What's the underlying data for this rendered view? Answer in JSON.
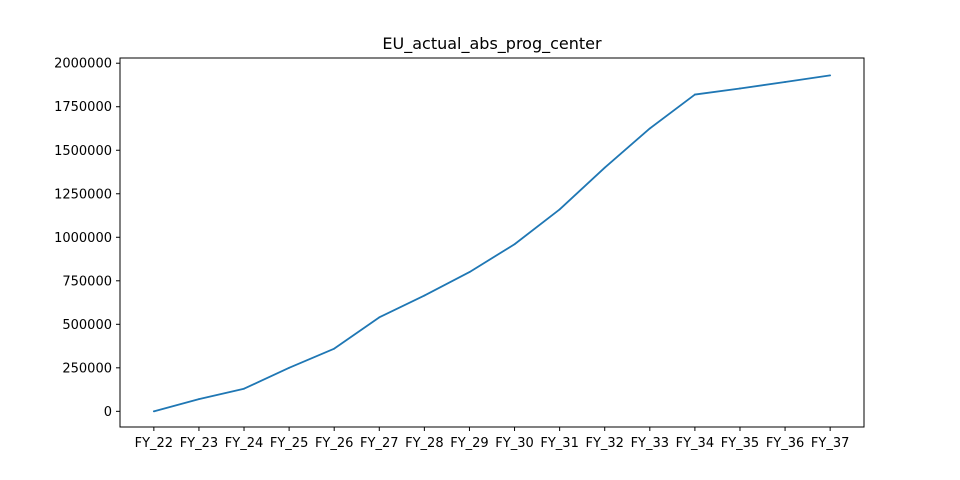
{
  "chart_data": {
    "type": "line",
    "title": "EU_actual_abs_prog_center",
    "xlabel": "",
    "ylabel": "",
    "categories": [
      "FY_22",
      "FY_23",
      "FY_24",
      "FY_25",
      "FY_26",
      "FY_27",
      "FY_28",
      "FY_29",
      "FY_30",
      "FY_31",
      "FY_32",
      "FY_33",
      "FY_34",
      "FY_35",
      "FY_36",
      "FY_37"
    ],
    "series": [
      {
        "color": "#1f77b4",
        "values": [
          0,
          70000,
          130000,
          250000,
          360000,
          540000,
          665000,
          800000,
          960000,
          1160000,
          1400000,
          1625000,
          1820000,
          1855000,
          1892000,
          1930000
        ]
      }
    ],
    "ylim": [
      -90000,
      2030000
    ],
    "yticks": [
      0,
      250000,
      500000,
      750000,
      1000000,
      1250000,
      1500000,
      1750000,
      2000000
    ],
    "ytick_labels": [
      "0",
      "250000",
      "500000",
      "750000",
      "1000000",
      "1250000",
      "1500000",
      "1750000",
      "2000000"
    ],
    "grid": false,
    "legend": "none"
  }
}
